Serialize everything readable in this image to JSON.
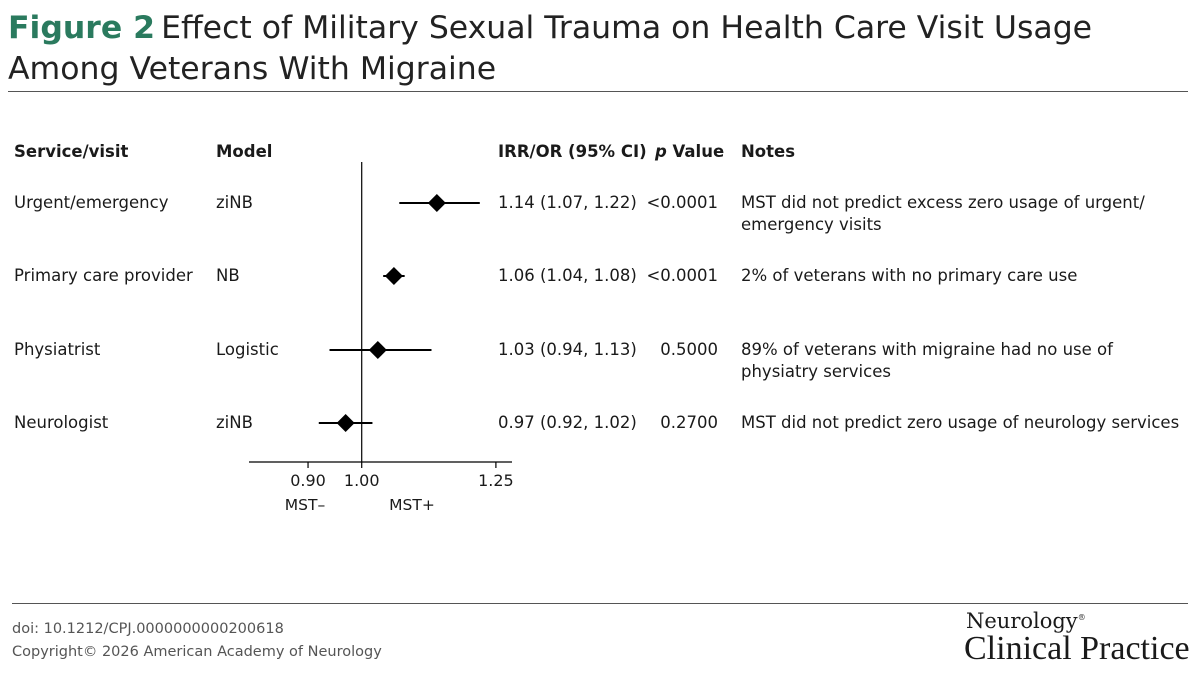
{
  "title": {
    "figure_label": "Figure 2",
    "text": "Effect of Military Sexual Trauma on Health Care Visit Usage Among Veterans With Migraine"
  },
  "columns": {
    "service": "Service/visit",
    "model": "Model",
    "irr": "IRR/OR (95% CI)",
    "p_italic": "p",
    "p_rest": " Value",
    "notes": "Notes"
  },
  "rows": [
    {
      "service": "Urgent/emergency",
      "model": "ziNB",
      "irr_text": "1.14 (1.07, 1.22)",
      "p": "<0.0001",
      "note": "MST did not predict excess zero usage of urgent/ emergency visits"
    },
    {
      "service": "Primary care provider",
      "model": "NB",
      "irr_text": "1.06 (1.04, 1.08)",
      "p": "<0.0001",
      "note": "2% of veterans with no primary care use"
    },
    {
      "service": "Physiatrist",
      "model": "Logistic",
      "irr_text": "1.03 (0.94, 1.13)",
      "p": "0.5000",
      "note": "89% of veterans with migraine had no use of physiatry services"
    },
    {
      "service": "Neurologist",
      "model": "ziNB",
      "irr_text": "0.97 (0.92, 1.02)",
      "p": "0.2700",
      "note": "MST did not predict zero usage of neurology services"
    }
  ],
  "chart_data": {
    "type": "scatter",
    "categories": [
      "Urgent/emergency",
      "Primary care provider",
      "Physiatrist",
      "Neurologist"
    ],
    "estimates": [
      1.14,
      1.06,
      1.03,
      0.97
    ],
    "ci_lower": [
      1.07,
      1.04,
      0.94,
      0.92
    ],
    "ci_upper": [
      1.22,
      1.08,
      1.13,
      1.02
    ],
    "reference_line": 1.0,
    "xlim": [
      0.79,
      1.28
    ],
    "ticks": [
      0.9,
      1.0,
      1.25
    ],
    "tick_labels": [
      "0.90",
      "1.00",
      "1.25"
    ],
    "direction_labels": {
      "left": "MST–",
      "right": "MST+"
    },
    "marker": "diamond",
    "color": "#000000"
  },
  "footer": {
    "doi": "doi: 10.1212/CPJ.0000000000200618",
    "copyright": "Copyright© 2026 American Academy of Neurology"
  },
  "brand": {
    "journal": "Neurology",
    "mark": "®",
    "subtitle": "Clinical Practice"
  }
}
